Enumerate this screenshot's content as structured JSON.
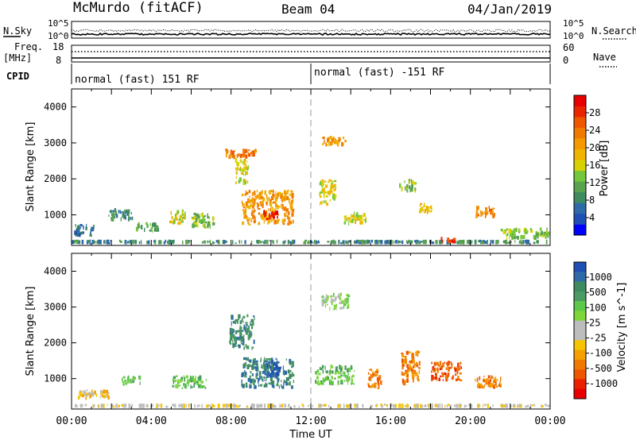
{
  "header": {
    "radar": "McMurdo (fitACF)",
    "beam": "Beam 04",
    "date": "04/Jan/2019"
  },
  "status_panels": {
    "nsky_label": "N.Sky",
    "nsearch_label": "N.Search",
    "noise_tick_high": "10^5",
    "noise_tick_low": "10^0",
    "freq_label_1": "Freq.",
    "freq_label_2": "[MHz]",
    "freq_tick_high": "18",
    "freq_tick_low": "8",
    "nave_tick_high": "60",
    "nave_tick_low": "0",
    "nave_label": "Nave",
    "cpid_label": "CPID",
    "cpid_segments": [
      "normal (fast) 151 RF",
      "normal (fast) -151 RF"
    ],
    "cpid_switch_time": "12:00"
  },
  "chart_data": [
    {
      "type": "heatmap",
      "name": "power",
      "xlabel": "",
      "ylabel": "Slant Range [km]",
      "xlim": [
        "00:00",
        "24:00"
      ],
      "ylim": [
        150,
        4500
      ],
      "yticks": [
        1000,
        2000,
        3000,
        4000
      ],
      "colorbar": {
        "label": "Power [dB]",
        "ticks": [
          "4",
          "8",
          "12",
          "16",
          "20",
          "24",
          "28"
        ],
        "colors": [
          "#0000ff",
          "#1f4fb4",
          "#2e6aa8",
          "#3f8a5f",
          "#5aa24f",
          "#74c73a",
          "#d7d100",
          "#f0b400",
          "#f39a00",
          "#f07a00",
          "#ee5600",
          "#ea2500",
          "#e80000"
        ]
      },
      "regions": [
        {
          "t": [
            0.0,
            24.0
          ],
          "r": [
            180,
            310
          ],
          "level": 3
        },
        {
          "t": [
            0.1,
            1.2
          ],
          "r": [
            380,
            750
          ],
          "level": 2
        },
        {
          "t": [
            1.8,
            3.1
          ],
          "r": [
            800,
            1200
          ],
          "level": 3
        },
        {
          "t": [
            3.2,
            4.4
          ],
          "r": [
            500,
            800
          ],
          "level": 4
        },
        {
          "t": [
            4.9,
            5.8
          ],
          "r": [
            700,
            1150
          ],
          "level": 6
        },
        {
          "t": [
            6.0,
            7.2
          ],
          "r": [
            600,
            1100
          ],
          "level": 5
        },
        {
          "t": [
            7.6,
            9.3
          ],
          "r": [
            2550,
            2850
          ],
          "level": 9
        },
        {
          "t": [
            8.2,
            8.9
          ],
          "r": [
            1800,
            2600
          ],
          "level": 6
        },
        {
          "t": [
            8.5,
            11.2
          ],
          "r": [
            700,
            1700
          ],
          "level": 8
        },
        {
          "t": [
            9.6,
            10.4
          ],
          "r": [
            850,
            1150
          ],
          "level": 12
        },
        {
          "t": [
            12.5,
            13.8
          ],
          "r": [
            2900,
            3200
          ],
          "level": 8
        },
        {
          "t": [
            12.4,
            13.3
          ],
          "r": [
            1200,
            2000
          ],
          "level": 6
        },
        {
          "t": [
            13.6,
            14.8
          ],
          "r": [
            700,
            1100
          ],
          "level": 6
        },
        {
          "t": [
            16.4,
            17.3
          ],
          "r": [
            1600,
            2000
          ],
          "level": 5
        },
        {
          "t": [
            17.4,
            18.1
          ],
          "r": [
            1000,
            1350
          ],
          "level": 7
        },
        {
          "t": [
            20.2,
            21.3
          ],
          "r": [
            900,
            1250
          ],
          "level": 9
        },
        {
          "t": [
            21.5,
            24.0
          ],
          "r": [
            300,
            650
          ],
          "level": 5
        },
        {
          "t": [
            18.5,
            19.3
          ],
          "r": [
            200,
            400
          ],
          "level": 11
        }
      ]
    },
    {
      "type": "heatmap",
      "name": "velocity",
      "xlabel": "Time UT",
      "ylabel": "Slant Range [km]",
      "xlim": [
        "00:00",
        "24:00"
      ],
      "xticks": [
        "00:00",
        "04:00",
        "08:00",
        "12:00",
        "16:00",
        "20:00",
        "00:00"
      ],
      "ylim": [
        150,
        4500
      ],
      "yticks": [
        1000,
        2000,
        3000,
        4000
      ],
      "colorbar": {
        "label": "Velocity [m s^-1]",
        "ticks": [
          "1000",
          "500",
          "100",
          "25",
          "-25",
          "-100",
          "-500",
          "-1000"
        ],
        "colors": [
          "#1f4fb4",
          "#2e6aa8",
          "#3f8a5f",
          "#4b9a63",
          "#5ec84a",
          "#7ed63a",
          "#bdbdbd",
          "#bdbdbd",
          "#f6c400",
          "#f4a000",
          "#f07a00",
          "#ee5600",
          "#ea2000",
          "#e80000"
        ]
      },
      "regions": [
        {
          "t": [
            0.0,
            24.0
          ],
          "r": [
            180,
            300
          ],
          "level": 7
        },
        {
          "t": [
            0.3,
            2.0
          ],
          "r": [
            400,
            700
          ],
          "level": 8
        },
        {
          "t": [
            2.5,
            3.5
          ],
          "r": [
            800,
            1100
          ],
          "level": 4
        },
        {
          "t": [
            5.0,
            6.8
          ],
          "r": [
            700,
            1100
          ],
          "level": 4
        },
        {
          "t": [
            7.9,
            9.2
          ],
          "r": [
            1800,
            2800
          ],
          "level": 2
        },
        {
          "t": [
            8.5,
            11.2
          ],
          "r": [
            700,
            1600
          ],
          "level": 2
        },
        {
          "t": [
            9.8,
            10.5
          ],
          "r": [
            1000,
            1500
          ],
          "level": 0
        },
        {
          "t": [
            12.2,
            14.2
          ],
          "r": [
            800,
            1400
          ],
          "level": 4
        },
        {
          "t": [
            14.8,
            15.6
          ],
          "r": [
            700,
            1300
          ],
          "level": 10
        },
        {
          "t": [
            16.5,
            17.5
          ],
          "r": [
            800,
            1800
          ],
          "level": 10
        },
        {
          "t": [
            18.0,
            19.6
          ],
          "r": [
            900,
            1500
          ],
          "level": 11
        },
        {
          "t": [
            20.2,
            21.6
          ],
          "r": [
            700,
            1100
          ],
          "level": 10
        },
        {
          "t": [
            12.5,
            14.0
          ],
          "r": [
            2900,
            3400
          ],
          "level": 5
        }
      ]
    }
  ]
}
